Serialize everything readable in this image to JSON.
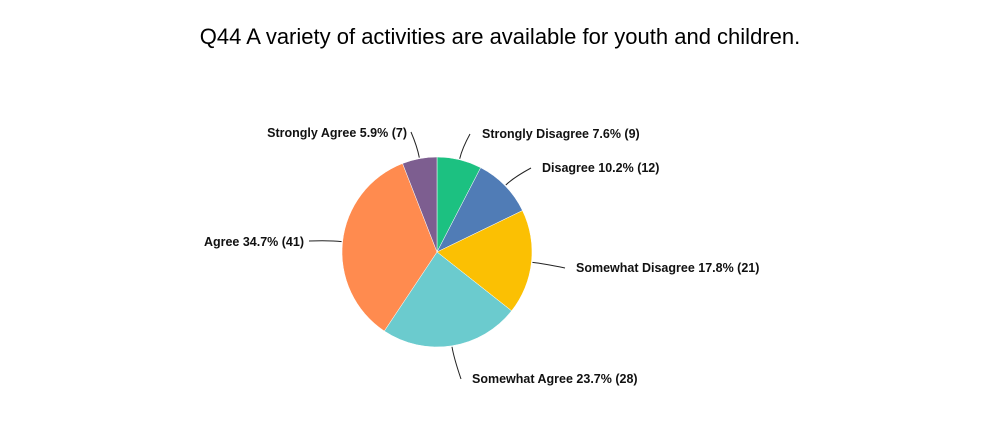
{
  "chart_data": {
    "type": "pie",
    "title": "Q44 A variety of activities are available for youth and children.",
    "slices": [
      {
        "name": "Strongly Disagree",
        "percent": 7.6,
        "count": 9,
        "label": "Strongly Disagree 7.6% (9)",
        "color": "#1CC181"
      },
      {
        "name": "Disagree",
        "percent": 10.2,
        "count": 12,
        "label": "Disagree 10.2% (12)",
        "color": "#507CB6"
      },
      {
        "name": "Somewhat Disagree",
        "percent": 17.8,
        "count": 21,
        "label": "Somewhat Disagree 17.8% (21)",
        "color": "#FBC003"
      },
      {
        "name": "Somewhat Agree",
        "percent": 23.7,
        "count": 28,
        "label": "Somewhat Agree 23.7% (28)",
        "color": "#6BCBCE"
      },
      {
        "name": "Agree",
        "percent": 34.7,
        "count": 41,
        "label": "Agree 34.7% (41)",
        "color": "#FF8B4F"
      },
      {
        "name": "Strongly Agree",
        "percent": 5.9,
        "count": 7,
        "label": "Strongly Agree 5.9% (7)",
        "color": "#7D5E90"
      }
    ]
  }
}
